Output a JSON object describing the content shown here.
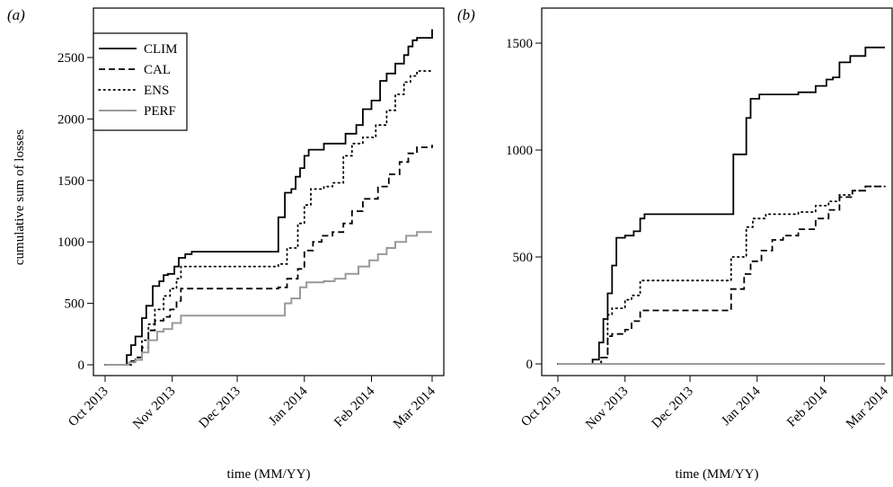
{
  "chart_data": [
    {
      "type": "line",
      "panel_label": "(a)",
      "xlabel": "time (MM/YY)",
      "ylabel": "cumulative sum of losses",
      "xlim": [
        "2013-10-01",
        "2014-03-01"
      ],
      "ylim": [
        0,
        2800
      ],
      "x_ticks": [
        "Oct 2013",
        "Nov 2013",
        "Dec 2013",
        "Jan 2014",
        "Feb 2014",
        "Mar 2014"
      ],
      "y_ticks": [
        "0",
        "500",
        "1000",
        "1500",
        "2000",
        "2500"
      ],
      "legend": {
        "position": "top-left",
        "entries": [
          {
            "name": "CLIM",
            "style": "solid",
            "color": "#000000"
          },
          {
            "name": "CAL",
            "style": "dashed",
            "color": "#000000"
          },
          {
            "name": "ENS",
            "style": "dotted",
            "color": "#000000"
          },
          {
            "name": "PERF",
            "style": "solid",
            "color": "#999999"
          }
        ]
      },
      "series": [
        {
          "name": "CLIM",
          "style": "solid",
          "color": "#000000",
          "x": [
            "2013-10-01",
            "2013-10-11",
            "2013-10-13",
            "2013-10-15",
            "2013-10-18",
            "2013-10-20",
            "2013-10-23",
            "2013-10-26",
            "2013-10-28",
            "2013-10-30",
            "2013-11-02",
            "2013-11-04",
            "2013-11-07",
            "2013-11-10",
            "2013-12-20",
            "2013-12-23",
            "2013-12-26",
            "2013-12-28",
            "2013-12-30",
            "2014-01-01",
            "2014-01-03",
            "2014-01-10",
            "2014-01-20",
            "2014-01-25",
            "2014-01-28",
            "2014-02-01",
            "2014-02-05",
            "2014-02-08",
            "2014-02-12",
            "2014-02-16",
            "2014-02-18",
            "2014-02-20",
            "2014-02-22",
            "2014-03-01"
          ],
          "y": [
            0,
            80,
            160,
            230,
            380,
            480,
            640,
            680,
            730,
            740,
            800,
            870,
            900,
            920,
            1200,
            1400,
            1430,
            1530,
            1600,
            1700,
            1750,
            1800,
            1880,
            1950,
            2080,
            2150,
            2310,
            2370,
            2450,
            2520,
            2590,
            2640,
            2660,
            2730
          ]
        },
        {
          "name": "CAL",
          "style": "dashed",
          "color": "#000000",
          "x": [
            "2013-10-01",
            "2013-10-13",
            "2013-10-15",
            "2013-10-18",
            "2013-10-21",
            "2013-10-24",
            "2013-10-28",
            "2013-10-31",
            "2013-11-03",
            "2013-11-05",
            "2013-12-20",
            "2013-12-24",
            "2013-12-29",
            "2014-01-01",
            "2014-01-05",
            "2014-01-09",
            "2014-01-14",
            "2014-01-19",
            "2014-01-23",
            "2014-01-28",
            "2014-02-04",
            "2014-02-09",
            "2014-02-14",
            "2014-02-18",
            "2014-02-22",
            "2014-03-01"
          ],
          "y": [
            0,
            30,
            60,
            140,
            280,
            360,
            390,
            450,
            520,
            620,
            630,
            700,
            780,
            930,
            1000,
            1050,
            1080,
            1150,
            1250,
            1350,
            1450,
            1550,
            1650,
            1720,
            1770,
            1790
          ]
        },
        {
          "name": "ENS",
          "style": "dotted",
          "color": "#000000",
          "x": [
            "2013-10-01",
            "2013-10-13",
            "2013-10-15",
            "2013-10-18",
            "2013-10-21",
            "2013-10-24",
            "2013-10-28",
            "2013-10-31",
            "2013-11-03",
            "2013-11-05",
            "2013-12-20",
            "2013-12-24",
            "2013-12-29",
            "2014-01-01",
            "2014-01-04",
            "2014-01-10",
            "2014-01-14",
            "2014-01-19",
            "2014-01-23",
            "2014-01-28",
            "2014-02-03",
            "2014-02-08",
            "2014-02-12",
            "2014-02-16",
            "2014-02-19",
            "2014-02-22",
            "2014-03-01"
          ],
          "y": [
            0,
            30,
            60,
            200,
            330,
            450,
            560,
            620,
            700,
            800,
            820,
            950,
            1150,
            1300,
            1430,
            1450,
            1480,
            1700,
            1800,
            1850,
            1950,
            2070,
            2200,
            2300,
            2350,
            2390,
            2400
          ]
        },
        {
          "name": "PERF",
          "style": "solid",
          "color": "#999999",
          "x": [
            "2013-10-01",
            "2013-10-12",
            "2013-10-15",
            "2013-10-18",
            "2013-10-21",
            "2013-10-25",
            "2013-10-28",
            "2013-11-01",
            "2013-11-05",
            "2013-12-20",
            "2013-12-23",
            "2013-12-26",
            "2013-12-30",
            "2014-01-02",
            "2014-01-10",
            "2014-01-15",
            "2014-01-20",
            "2014-01-26",
            "2014-01-31",
            "2014-02-04",
            "2014-02-08",
            "2014-02-12",
            "2014-02-17",
            "2014-02-22",
            "2014-03-01"
          ],
          "y": [
            0,
            20,
            40,
            100,
            200,
            270,
            290,
            340,
            400,
            400,
            500,
            540,
            630,
            670,
            680,
            700,
            740,
            800,
            850,
            900,
            950,
            1000,
            1050,
            1080,
            1080
          ]
        }
      ]
    },
    {
      "type": "line",
      "panel_label": "(b)",
      "xlabel": "time (MM/YY)",
      "ylabel": "",
      "xlim": [
        "2013-10-01",
        "2014-03-01"
      ],
      "ylim": [
        -20,
        1500
      ],
      "x_ticks": [
        "Oct 2013",
        "Nov 2013",
        "Dec 2013",
        "Jan 2014",
        "Feb 2014",
        "Mar 2014"
      ],
      "y_ticks": [
        "0",
        "500",
        "1000",
        "1500"
      ],
      "series": [
        {
          "name": "CLIM",
          "style": "solid",
          "color": "#000000",
          "x": [
            "2013-10-01",
            "2013-10-17",
            "2013-10-20",
            "2013-10-22",
            "2013-10-24",
            "2013-10-26",
            "2013-10-28",
            "2013-11-01",
            "2013-11-05",
            "2013-11-08",
            "2013-11-10",
            "2013-12-19",
            "2013-12-21",
            "2013-12-25",
            "2013-12-27",
            "2013-12-29",
            "2014-01-02",
            "2014-01-10",
            "2014-01-20",
            "2014-01-28",
            "2014-02-02",
            "2014-02-05",
            "2014-02-08",
            "2014-02-13",
            "2014-02-20",
            "2014-03-01"
          ],
          "y": [
            0,
            20,
            100,
            210,
            330,
            460,
            590,
            600,
            620,
            680,
            700,
            700,
            980,
            980,
            1150,
            1240,
            1260,
            1260,
            1270,
            1300,
            1330,
            1340,
            1410,
            1440,
            1480,
            1480
          ]
        },
        {
          "name": "CAL",
          "style": "dashed",
          "color": "#000000",
          "x": [
            "2013-10-01",
            "2013-10-21",
            "2013-10-24",
            "2013-10-26",
            "2013-11-01",
            "2013-11-04",
            "2013-11-08",
            "2013-12-18",
            "2013-12-20",
            "2013-12-26",
            "2013-12-29",
            "2014-01-03",
            "2014-01-08",
            "2014-01-13",
            "2014-01-20",
            "2014-01-28",
            "2014-02-03",
            "2014-02-08",
            "2014-02-14",
            "2014-02-20",
            "2014-03-01"
          ],
          "y": [
            0,
            30,
            130,
            140,
            160,
            200,
            250,
            250,
            350,
            420,
            480,
            530,
            580,
            600,
            630,
            680,
            720,
            780,
            810,
            830,
            830
          ]
        },
        {
          "name": "ENS",
          "style": "dotted",
          "color": "#000000",
          "x": [
            "2013-10-01",
            "2013-10-21",
            "2013-10-24",
            "2013-10-26",
            "2013-11-01",
            "2013-11-04",
            "2013-11-08",
            "2013-12-18",
            "2013-12-20",
            "2013-12-25",
            "2013-12-27",
            "2013-12-30",
            "2014-01-05",
            "2014-01-12",
            "2014-01-20",
            "2014-01-28",
            "2014-02-03",
            "2014-02-08",
            "2014-02-14",
            "2014-02-20",
            "2014-03-01"
          ],
          "y": [
            0,
            30,
            230,
            260,
            300,
            320,
            390,
            390,
            500,
            500,
            640,
            680,
            700,
            700,
            710,
            740,
            760,
            790,
            810,
            830,
            830
          ]
        },
        {
          "name": "PERF",
          "style": "solid",
          "color": "#999999",
          "x": [
            "2013-10-01",
            "2014-03-01"
          ],
          "y": [
            0,
            0
          ]
        }
      ]
    }
  ]
}
